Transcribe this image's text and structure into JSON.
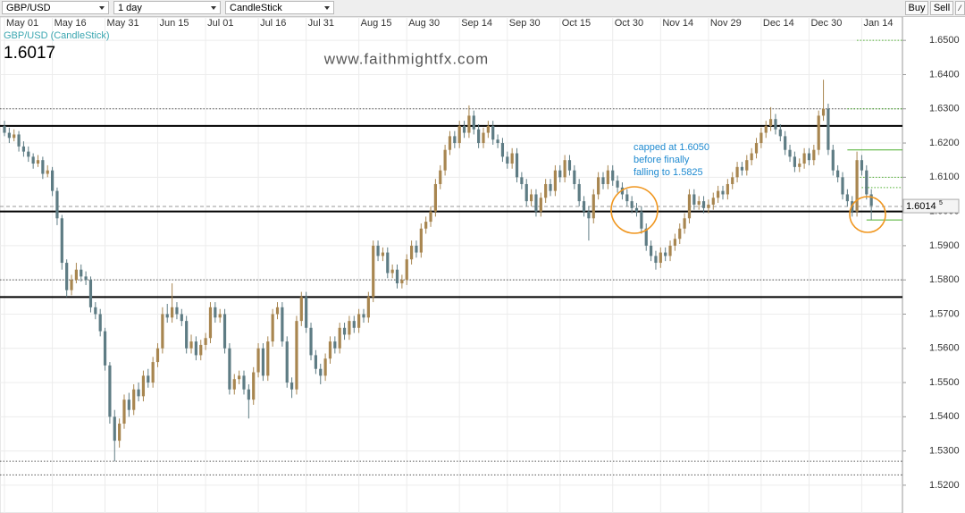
{
  "toolbar": {
    "symbol": "GBP/USD",
    "interval": "1 day",
    "chart_style": "CandleStick",
    "buttons": [
      "Buy",
      "Sell"
    ]
  },
  "chart_data": {
    "type": "candlestick",
    "legend": "GBP/USD (CandleStick)",
    "last_price": "1.6017",
    "watermark": "www.faithmightfx.com",
    "annotation": [
      "capped at 1.6050",
      "before finally",
      "falling to 1.5825"
    ],
    "price_marker": {
      "value": 1.60145,
      "label": "1.6014",
      "sup": "5"
    },
    "up_color": "#a88650",
    "down_color": "#5e7c84",
    "grid": true,
    "xlim": [
      -0.93,
      187.5
    ],
    "ylim": [
      1.5124,
      1.6571
    ],
    "xticks": [
      {
        "value": 0,
        "label": "May 01"
      },
      {
        "value": 10,
        "label": "May 16"
      },
      {
        "value": 21,
        "label": "May 31"
      },
      {
        "value": 32,
        "label": "Jun 15"
      },
      {
        "value": 42,
        "label": "Jul 01"
      },
      {
        "value": 53,
        "label": "Jul 16"
      },
      {
        "value": 63,
        "label": "Jul 31"
      },
      {
        "value": 74,
        "label": "Aug 15"
      },
      {
        "value": 84,
        "label": "Aug 30"
      },
      {
        "value": 95,
        "label": "Sep 14"
      },
      {
        "value": 105,
        "label": "Sep 30"
      },
      {
        "value": 116,
        "label": "Oct 15"
      },
      {
        "value": 127,
        "label": "Oct 30"
      },
      {
        "value": 137,
        "label": "Nov 14"
      },
      {
        "value": 147,
        "label": "Nov 29"
      },
      {
        "value": 158,
        "label": "Dec 14"
      },
      {
        "value": 168,
        "label": "Dec 30"
      },
      {
        "value": 179,
        "label": "Jan 14"
      }
    ],
    "yticks": [
      {
        "value": 1.65,
        "label": "1.6500"
      },
      {
        "value": 1.64,
        "label": "1.6400"
      },
      {
        "value": 1.63,
        "label": "1.6300"
      },
      {
        "value": 1.62,
        "label": "1.6200"
      },
      {
        "value": 1.61,
        "label": "1.6100"
      },
      {
        "value": 1.6,
        "label": "1.6000"
      },
      {
        "value": 1.59,
        "label": "1.5900"
      },
      {
        "value": 1.58,
        "label": "1.5800"
      },
      {
        "value": 1.57,
        "label": "1.5700"
      },
      {
        "value": 1.56,
        "label": "1.5600"
      },
      {
        "value": 1.55,
        "label": "1.5500"
      },
      {
        "value": 1.54,
        "label": "1.5400"
      },
      {
        "value": 1.53,
        "label": "1.5300"
      },
      {
        "value": 1.52,
        "label": "1.5200"
      }
    ],
    "levels": [
      {
        "value": 1.625,
        "style": "solid",
        "color": "#000000"
      },
      {
        "value": 1.6,
        "style": "solid",
        "color": "#000000"
      },
      {
        "value": 1.575,
        "style": "solid",
        "color": "#000000"
      },
      {
        "value": 1.63,
        "style": "dotted",
        "color": "#555555"
      },
      {
        "value": 1.58,
        "style": "dotted",
        "color": "#555555"
      },
      {
        "value": 1.527,
        "style": "dotted",
        "color": "#555555"
      },
      {
        "value": 1.523,
        "style": "dotted",
        "color": "#555555"
      },
      {
        "value": 1.618,
        "style": "solid",
        "color": "#4caf2e",
        "from": 176
      },
      {
        "value": 1.5975,
        "style": "solid",
        "color": "#4caf2e",
        "from": 180
      },
      {
        "value": 1.65,
        "style": "dotted",
        "color": "#4caf2e",
        "from": 178
      },
      {
        "value": 1.63,
        "style": "dotted",
        "color": "#4caf2e",
        "from": 176
      },
      {
        "value": 1.61,
        "style": "dotted",
        "color": "#4caf2e",
        "from": 178
      },
      {
        "value": 1.607,
        "style": "dotted",
        "color": "#4caf2e",
        "from": 179
      }
    ],
    "ohlc": [
      [
        1.625,
        1.6265,
        1.622,
        1.623
      ],
      [
        1.623,
        1.6245,
        1.62,
        1.6215
      ],
      [
        1.6215,
        1.624,
        1.6205,
        1.6225
      ],
      [
        1.6225,
        1.6235,
        1.6175,
        1.619
      ],
      [
        1.619,
        1.6205,
        1.616,
        1.6175
      ],
      [
        1.6175,
        1.619,
        1.6145,
        1.616
      ],
      [
        1.616,
        1.617,
        1.6125,
        1.614
      ],
      [
        1.614,
        1.6165,
        1.613,
        1.615
      ],
      [
        1.615,
        1.616,
        1.6095,
        1.611
      ],
      [
        1.611,
        1.6135,
        1.61,
        1.612
      ],
      [
        1.612,
        1.613,
        1.6045,
        1.606
      ],
      [
        1.606,
        1.607,
        1.596,
        1.598
      ],
      [
        1.598,
        1.599,
        1.583,
        1.585
      ],
      [
        1.585,
        1.586,
        1.575,
        1.577
      ],
      [
        1.577,
        1.5815,
        1.5755,
        1.58
      ],
      [
        1.58,
        1.585,
        1.579,
        1.583
      ],
      [
        1.583,
        1.5845,
        1.5795,
        1.581
      ],
      [
        1.581,
        1.5825,
        1.5785,
        1.58
      ],
      [
        1.58,
        1.581,
        1.5705,
        1.572
      ],
      [
        1.572,
        1.5735,
        1.5685,
        1.57
      ],
      [
        1.57,
        1.5715,
        1.5635,
        1.565
      ],
      [
        1.565,
        1.566,
        1.5535,
        1.555
      ],
      [
        1.555,
        1.556,
        1.538,
        1.54
      ],
      [
        1.54,
        1.542,
        1.527,
        1.533
      ],
      [
        1.533,
        1.5395,
        1.531,
        1.538
      ],
      [
        1.538,
        1.5465,
        1.5365,
        1.545
      ],
      [
        1.545,
        1.547,
        1.54,
        1.542
      ],
      [
        1.542,
        1.5495,
        1.5405,
        1.548
      ],
      [
        1.548,
        1.55,
        1.5445,
        1.546
      ],
      [
        1.546,
        1.5535,
        1.5445,
        1.552
      ],
      [
        1.552,
        1.554,
        1.5485,
        1.55
      ],
      [
        1.55,
        1.5575,
        1.5485,
        1.556
      ],
      [
        1.556,
        1.5615,
        1.5545,
        1.56
      ],
      [
        1.56,
        1.572,
        1.5585,
        1.57
      ],
      [
        1.57,
        1.573,
        1.5675,
        1.569
      ],
      [
        1.569,
        1.579,
        1.5675,
        1.572
      ],
      [
        1.572,
        1.5735,
        1.5685,
        1.57
      ],
      [
        1.57,
        1.5715,
        1.5665,
        1.568
      ],
      [
        1.568,
        1.5695,
        1.5585,
        1.56
      ],
      [
        1.56,
        1.564,
        1.5585,
        1.562
      ],
      [
        1.562,
        1.5635,
        1.5565,
        1.558
      ],
      [
        1.558,
        1.5625,
        1.5565,
        1.561
      ],
      [
        1.561,
        1.5645,
        1.5595,
        1.563
      ],
      [
        1.563,
        1.5735,
        1.5615,
        1.572
      ],
      [
        1.572,
        1.5735,
        1.5675,
        1.569
      ],
      [
        1.569,
        1.5715,
        1.5675,
        1.57
      ],
      [
        1.57,
        1.5715,
        1.5585,
        1.56
      ],
      [
        1.56,
        1.5615,
        1.5465,
        1.548
      ],
      [
        1.548,
        1.5525,
        1.5465,
        1.551
      ],
      [
        1.551,
        1.5535,
        1.5495,
        1.552
      ],
      [
        1.552,
        1.5535,
        1.5465,
        1.548
      ],
      [
        1.548,
        1.5495,
        1.5395,
        1.545
      ],
      [
        1.545,
        1.5545,
        1.5435,
        1.553
      ],
      [
        1.553,
        1.5615,
        1.5515,
        1.56
      ],
      [
        1.56,
        1.5615,
        1.5505,
        1.552
      ],
      [
        1.552,
        1.5635,
        1.5505,
        1.562
      ],
      [
        1.562,
        1.5715,
        1.5605,
        1.57
      ],
      [
        1.57,
        1.5735,
        1.5685,
        1.572
      ],
      [
        1.572,
        1.5735,
        1.5605,
        1.562
      ],
      [
        1.562,
        1.5635,
        1.5485,
        1.55
      ],
      [
        1.55,
        1.5515,
        1.5455,
        1.548
      ],
      [
        1.548,
        1.5695,
        1.5465,
        1.568
      ],
      [
        1.568,
        1.5765,
        1.5665,
        1.575
      ],
      [
        1.575,
        1.5765,
        1.5645,
        1.566
      ],
      [
        1.566,
        1.5675,
        1.5565,
        1.558
      ],
      [
        1.558,
        1.5595,
        1.5525,
        1.554
      ],
      [
        1.554,
        1.5555,
        1.5495,
        1.552
      ],
      [
        1.552,
        1.5585,
        1.5505,
        1.557
      ],
      [
        1.557,
        1.5635,
        1.5555,
        1.562
      ],
      [
        1.562,
        1.5635,
        1.5585,
        1.56
      ],
      [
        1.56,
        1.5675,
        1.5585,
        1.566
      ],
      [
        1.566,
        1.5675,
        1.5625,
        1.564
      ],
      [
        1.564,
        1.5695,
        1.5625,
        1.568
      ],
      [
        1.568,
        1.5695,
        1.5645,
        1.566
      ],
      [
        1.566,
        1.5715,
        1.5645,
        1.57
      ],
      [
        1.57,
        1.5715,
        1.5675,
        1.569
      ],
      [
        1.569,
        1.5765,
        1.5675,
        1.575
      ],
      [
        1.575,
        1.5915,
        1.5735,
        1.59
      ],
      [
        1.59,
        1.5915,
        1.5855,
        1.587
      ],
      [
        1.587,
        1.5895,
        1.5855,
        1.588
      ],
      [
        1.588,
        1.5895,
        1.5805,
        1.582
      ],
      [
        1.582,
        1.5845,
        1.5805,
        1.583
      ],
      [
        1.583,
        1.5845,
        1.5775,
        1.579
      ],
      [
        1.579,
        1.5815,
        1.5775,
        1.58
      ],
      [
        1.58,
        1.5875,
        1.5785,
        1.586
      ],
      [
        1.586,
        1.5915,
        1.5845,
        1.59
      ],
      [
        1.59,
        1.5915,
        1.5865,
        1.588
      ],
      [
        1.588,
        1.5965,
        1.5865,
        1.595
      ],
      [
        1.595,
        1.5985,
        1.5935,
        1.597
      ],
      [
        1.597,
        1.6015,
        1.5955,
        1.6
      ],
      [
        1.6,
        1.6095,
        1.5985,
        1.608
      ],
      [
        1.608,
        1.6135,
        1.6065,
        1.612
      ],
      [
        1.612,
        1.6195,
        1.6105,
        1.618
      ],
      [
        1.618,
        1.6235,
        1.6165,
        1.622
      ],
      [
        1.622,
        1.6235,
        1.6185,
        1.62
      ],
      [
        1.62,
        1.6265,
        1.6185,
        1.625
      ],
      [
        1.625,
        1.6265,
        1.6215,
        1.623
      ],
      [
        1.623,
        1.631,
        1.6215,
        1.628
      ],
      [
        1.628,
        1.6295,
        1.6225,
        1.624
      ],
      [
        1.624,
        1.6255,
        1.6185,
        1.62
      ],
      [
        1.62,
        1.6245,
        1.6185,
        1.623
      ],
      [
        1.623,
        1.6265,
        1.6215,
        1.625
      ],
      [
        1.625,
        1.6265,
        1.6195,
        1.621
      ],
      [
        1.621,
        1.6225,
        1.6185,
        1.62
      ],
      [
        1.62,
        1.6215,
        1.6145,
        1.616
      ],
      [
        1.616,
        1.6175,
        1.6125,
        1.614
      ],
      [
        1.614,
        1.6185,
        1.6125,
        1.617
      ],
      [
        1.617,
        1.6185,
        1.6085,
        1.61
      ],
      [
        1.61,
        1.6115,
        1.6065,
        1.608
      ],
      [
        1.608,
        1.6095,
        1.6015,
        1.603
      ],
      [
        1.603,
        1.6065,
        1.6015,
        1.605
      ],
      [
        1.605,
        1.6065,
        1.5985,
        1.6
      ],
      [
        1.6,
        1.6055,
        1.5985,
        1.604
      ],
      [
        1.604,
        1.6095,
        1.6025,
        1.608
      ],
      [
        1.608,
        1.6095,
        1.6045,
        1.606
      ],
      [
        1.606,
        1.6135,
        1.6045,
        1.612
      ],
      [
        1.612,
        1.6135,
        1.6085,
        1.61
      ],
      [
        1.61,
        1.6165,
        1.6085,
        1.615
      ],
      [
        1.615,
        1.6165,
        1.6105,
        1.612
      ],
      [
        1.612,
        1.6135,
        1.6065,
        1.608
      ],
      [
        1.608,
        1.6095,
        1.6015,
        1.603
      ],
      [
        1.603,
        1.6045,
        1.5985,
        1.6
      ],
      [
        1.6,
        1.6015,
        1.5915,
        1.598
      ],
      [
        1.598,
        1.6065,
        1.5965,
        1.605
      ],
      [
        1.605,
        1.6115,
        1.6035,
        1.61
      ],
      [
        1.61,
        1.6115,
        1.6065,
        1.608
      ],
      [
        1.608,
        1.6135,
        1.6065,
        1.612
      ],
      [
        1.612,
        1.6135,
        1.6075,
        1.609
      ],
      [
        1.609,
        1.6105,
        1.6055,
        1.607
      ],
      [
        1.607,
        1.6085,
        1.6035,
        1.605
      ],
      [
        1.605,
        1.6065,
        1.6015,
        1.603
      ],
      [
        1.603,
        1.6045,
        1.5995,
        1.601
      ],
      [
        1.601,
        1.6025,
        1.5985,
        1.6
      ],
      [
        1.6,
        1.6015,
        1.5935,
        1.595
      ],
      [
        1.595,
        1.5965,
        1.5885,
        1.59
      ],
      [
        1.59,
        1.5915,
        1.5855,
        1.587
      ],
      [
        1.587,
        1.5885,
        1.583,
        1.585
      ],
      [
        1.585,
        1.5895,
        1.5835,
        1.588
      ],
      [
        1.588,
        1.5895,
        1.5855,
        1.587
      ],
      [
        1.587,
        1.5915,
        1.5855,
        1.59
      ],
      [
        1.59,
        1.5935,
        1.5885,
        1.592
      ],
      [
        1.592,
        1.5965,
        1.5905,
        1.595
      ],
      [
        1.595,
        1.5995,
        1.5935,
        1.598
      ],
      [
        1.598,
        1.6065,
        1.5965,
        1.605
      ],
      [
        1.605,
        1.6065,
        1.6005,
        1.602
      ],
      [
        1.602,
        1.6045,
        1.6005,
        1.603
      ],
      [
        1.603,
        1.6045,
        1.5995,
        1.601
      ],
      [
        1.601,
        1.6035,
        1.5995,
        1.602
      ],
      [
        1.602,
        1.6055,
        1.6005,
        1.604
      ],
      [
        1.604,
        1.6075,
        1.6025,
        1.606
      ],
      [
        1.606,
        1.6075,
        1.6035,
        1.605
      ],
      [
        1.605,
        1.6095,
        1.6035,
        1.608
      ],
      [
        1.608,
        1.6115,
        1.6065,
        1.61
      ],
      [
        1.61,
        1.6145,
        1.6085,
        1.613
      ],
      [
        1.613,
        1.6145,
        1.6105,
        1.612
      ],
      [
        1.612,
        1.6165,
        1.6105,
        1.615
      ],
      [
        1.615,
        1.6185,
        1.6135,
        1.617
      ],
      [
        1.617,
        1.6215,
        1.6155,
        1.62
      ],
      [
        1.62,
        1.6245,
        1.6185,
        1.623
      ],
      [
        1.623,
        1.6265,
        1.6215,
        1.625
      ],
      [
        1.625,
        1.6305,
        1.6235,
        1.627
      ],
      [
        1.627,
        1.6285,
        1.6225,
        1.624
      ],
      [
        1.624,
        1.6255,
        1.6205,
        1.622
      ],
      [
        1.622,
        1.6235,
        1.6165,
        1.618
      ],
      [
        1.618,
        1.6195,
        1.6145,
        1.616
      ],
      [
        1.616,
        1.6175,
        1.6115,
        1.613
      ],
      [
        1.613,
        1.6155,
        1.6115,
        1.614
      ],
      [
        1.614,
        1.6185,
        1.6125,
        1.617
      ],
      [
        1.617,
        1.6185,
        1.6135,
        1.615
      ],
      [
        1.615,
        1.6195,
        1.6135,
        1.618
      ],
      [
        1.618,
        1.6295,
        1.6165,
        1.628
      ],
      [
        1.628,
        1.6385,
        1.6265,
        1.63
      ],
      [
        1.63,
        1.6315,
        1.6165,
        1.618
      ],
      [
        1.618,
        1.6195,
        1.6105,
        1.612
      ],
      [
        1.612,
        1.6135,
        1.6085,
        1.61
      ],
      [
        1.61,
        1.6115,
        1.6035,
        1.605
      ],
      [
        1.605,
        1.6065,
        1.6015,
        1.603
      ],
      [
        1.603,
        1.6045,
        1.5985,
        1.6
      ],
      [
        1.6,
        1.6175,
        1.5985,
        1.615
      ],
      [
        1.615,
        1.6165,
        1.6105,
        1.612
      ],
      [
        1.612,
        1.6135,
        1.6035,
        1.605
      ],
      [
        1.605,
        1.6065,
        1.5975,
        1.6017
      ]
    ]
  }
}
